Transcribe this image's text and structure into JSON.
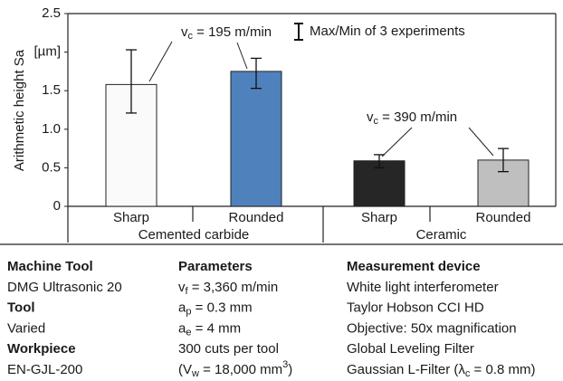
{
  "chart_data": {
    "type": "bar",
    "y_label": "Arithmetic height Sa",
    "categories": [
      "Sharp",
      "Rounded",
      "Sharp",
      "Rounded"
    ],
    "groups": [
      "Cemented carbide",
      "Ceramic"
    ],
    "values": [
      1.58,
      1.75,
      0.59,
      0.6
    ],
    "max": [
      2.03,
      1.92,
      0.67,
      0.75
    ],
    "min": [
      1.21,
      1.53,
      0.5,
      0.45
    ],
    "colors": [
      "#fafafa",
      "#4f81bd",
      "#262626",
      "#bfbfbf"
    ],
    "ylim": [
      0,
      2.5
    ],
    "yticks": [
      0,
      0.5,
      {
        "value": 1,
        "label": "1.0"
      },
      1.5,
      {
        "value": 2,
        "label": "[µm]"
      },
      2.5
    ],
    "legend": "Max/Min of 3 experiments",
    "annotations": [
      [
        {
          "text": "v"
        },
        {
          "text": "c",
          "style": "sub"
        },
        {
          "text": " = 195 m/min"
        }
      ],
      [
        {
          "text": "v"
        },
        {
          "text": "c",
          "style": "sub"
        },
        {
          "text": " = 390 m/min"
        }
      ]
    ]
  },
  "specs": [
    [
      {
        "heading": "Machine Tool",
        "lines": [
          "DMG Ultrasonic 20"
        ]
      },
      {
        "heading": "Tool",
        "lines": [
          "Varied"
        ]
      },
      {
        "heading": "Workpiece",
        "lines": [
          "EN-GJL-200"
        ]
      }
    ],
    [
      {
        "heading": "Parameters",
        "lines": [
          [
            {
              "text": "v"
            },
            {
              "text": "f",
              "style": "sub"
            },
            {
              "text": " = 3,360 m/min"
            }
          ],
          [
            {
              "text": "a"
            },
            {
              "text": "p",
              "style": "sub"
            },
            {
              "text": " = 0.3 mm"
            }
          ],
          [
            {
              "text": "a"
            },
            {
              "text": "e",
              "style": "sub"
            },
            {
              "text": " = 4 mm"
            }
          ],
          "300 cuts per tool",
          [
            {
              "text": "(V"
            },
            {
              "text": "w",
              "style": "sub"
            },
            {
              "text": " = 18,000 mm"
            },
            {
              "text": "3",
              "style": "sup"
            },
            {
              "text": ")"
            }
          ]
        ]
      }
    ],
    [
      {
        "heading": "Measurement device",
        "lines": [
          "White light interferometer",
          "Taylor Hobson CCI HD",
          "Objective: 50x magnification",
          "Global Leveling Filter",
          [
            {
              "text": "Gaussian L-Filter (λ"
            },
            {
              "text": "c",
              "style": "sub"
            },
            {
              "text": " = 0.8 mm)"
            }
          ]
        ]
      }
    ]
  ]
}
